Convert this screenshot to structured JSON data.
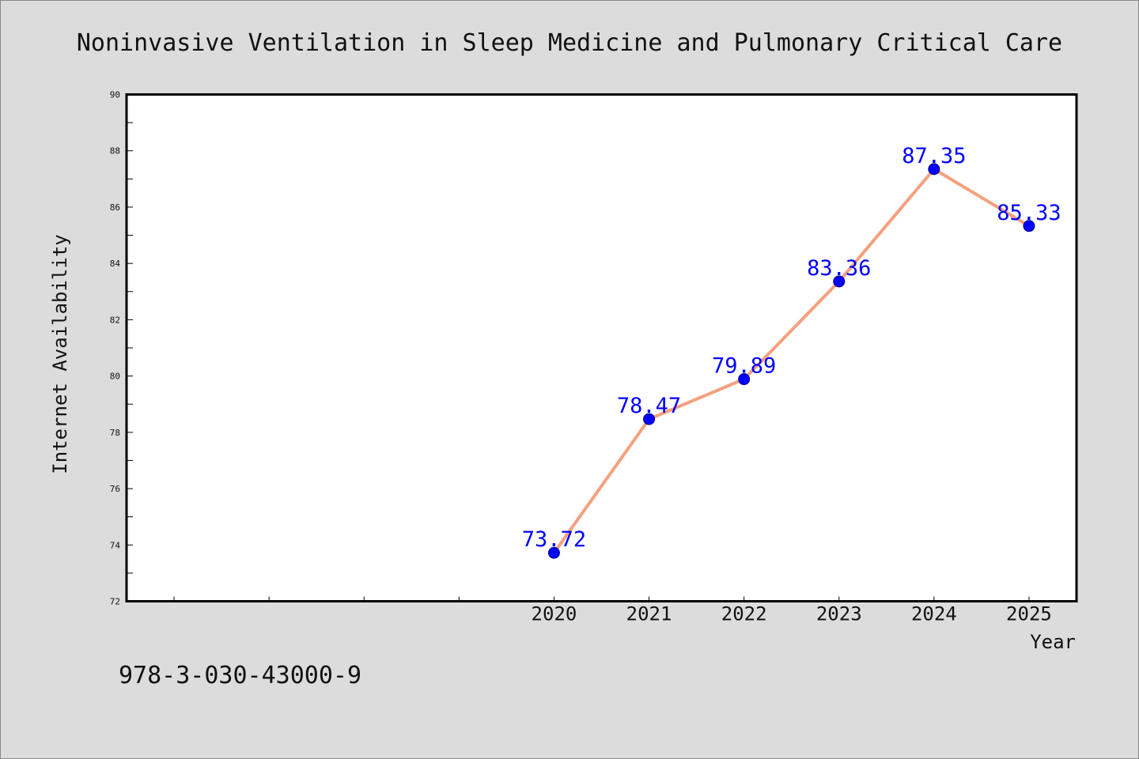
{
  "chart_data": {
    "type": "line",
    "title": "Noninvasive Ventilation in Sleep Medicine and Pulmonary Critical Care",
    "xlabel": "Year",
    "ylabel": "Internet Availability",
    "x": [
      "2020",
      "2021",
      "2022",
      "2023",
      "2024",
      "2025"
    ],
    "series": [
      {
        "values": [
          73.72,
          78.47,
          79.89,
          83.36,
          87.35,
          85.33
        ],
        "labels": [
          "73.72",
          "78.47",
          "79.89",
          "83.36",
          "87.35",
          "85.33"
        ]
      }
    ],
    "xlim": [
      2015.5,
      2025.5
    ],
    "ylim": [
      72,
      90
    ],
    "yticks": [
      "72",
      "74",
      "76",
      "78",
      "80",
      "82",
      "84",
      "86",
      "88",
      "90"
    ],
    "grid": false,
    "line_color": "#f5a07e",
    "marker_color": "#0000ff",
    "background_color": "#dcdcdc",
    "plot_background": "#ffffff"
  },
  "annotation": {
    "isbn": "978-3-030-43000-9"
  }
}
